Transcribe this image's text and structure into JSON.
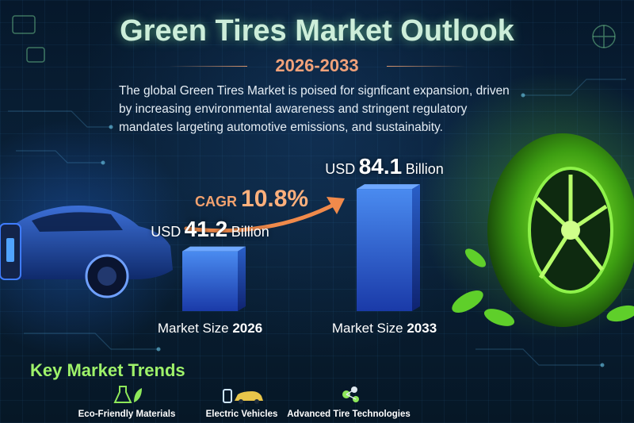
{
  "header": {
    "title": "Green Tires Market Outlook",
    "subtitle": "2026-2033",
    "description": "The global Green Tires Market is poised for signficant expansion, driven by increasing environmental awareness and stringent regulatory mandates largeting automotive emissions, and sustainabity."
  },
  "cagr": {
    "prefix": "CAGR",
    "value": "10.8%"
  },
  "chart_data": {
    "type": "bar",
    "categories": [
      "Market Size 2026",
      "Market Size 2033"
    ],
    "category_parts": [
      {
        "text": "Market Size",
        "year": "2026"
      },
      {
        "text": "Market Size",
        "year": "2033"
      }
    ],
    "values": [
      41.2,
      84.1
    ],
    "value_labels": [
      {
        "prefix": "USD",
        "number": "41.2",
        "suffix": "Billion"
      },
      {
        "prefix": "USD",
        "number": "84.1",
        "suffix": "Billion"
      }
    ],
    "unit": "USD Billion",
    "title": "",
    "xlabel": "",
    "ylabel": ""
  },
  "trends": {
    "title": "Key Market Trends",
    "items": [
      {
        "label": "Eco-Friendly Materials",
        "icon": "flask-leaf-icon"
      },
      {
        "label": "Electric Vehicles",
        "icon": "ev-car-icon"
      },
      {
        "label": "Advanced Tire Technologies",
        "icon": "tire-tech-icon"
      }
    ]
  },
  "colors": {
    "title": "#cdeeda",
    "subtitle": "#f1a27a",
    "cagr": "#ffb07c",
    "bar_top": "#3f7fe6",
    "bar_bottom": "#1a3aa8",
    "trends_title": "#9ef26a",
    "background": "#0a2138"
  }
}
